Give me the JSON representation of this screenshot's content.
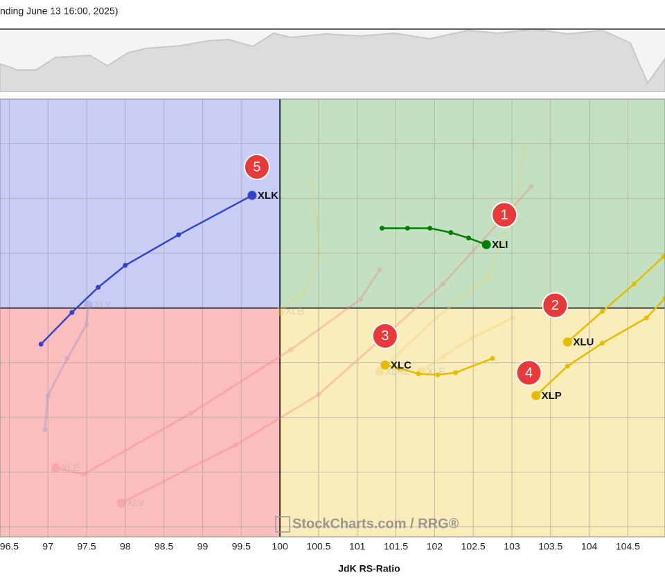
{
  "chart_data": {
    "type": "rrg",
    "header": "nding June 13 16:00, 2025)",
    "x_label": "JdK RS-Ratio",
    "watermark": "StockCharts.com / RRG®",
    "xlim": [
      96.38,
      104.98
    ],
    "ylim": [
      97.91,
      101.91
    ],
    "xticks": [
      96.5,
      97,
      97.5,
      98,
      98.5,
      99,
      99.5,
      100,
      100.5,
      101,
      101.5,
      102,
      102.5,
      103,
      103.5,
      104,
      104.5
    ],
    "yticks": [
      98,
      98.5,
      99,
      99.5,
      100,
      100.5,
      101,
      101.5
    ],
    "center": [
      100,
      100
    ],
    "quadrant_colors": {
      "top_left": "#c9cdf5",
      "top_right": "#c3e1c1",
      "bottom_left": "#fcbdbd",
      "bottom_right": "#fbedb9"
    },
    "grid": true,
    "series": [
      {
        "name": "XLY",
        "color": "#8a8fd0",
        "highlighted": false,
        "x": [
          96.96,
          97.0,
          97.25,
          97.5,
          97.52
        ],
        "values": [
          98.89,
          99.2,
          99.54,
          99.85,
          100.03
        ]
      },
      {
        "name": "XLB",
        "color": "#e8d070",
        "highlighted": false,
        "x": [
          100.41,
          100.52,
          100.32,
          100.0
        ],
        "values": [
          101.16,
          100.47,
          100.16,
          99.97
        ]
      },
      {
        "name": "XLE",
        "color": "#f08080",
        "highlighted": false,
        "x": [
          101.29,
          101.04,
          100.14,
          98.85,
          97.46,
          97.1
        ],
        "values": [
          100.35,
          100.08,
          99.62,
          99.04,
          98.48,
          98.54
        ]
      },
      {
        "name": "XLV",
        "color": "#f08080",
        "highlighted": false,
        "x": [
          103.25,
          102.11,
          100.5,
          99.43,
          97.95
        ],
        "values": [
          101.11,
          100.22,
          99.21,
          98.75,
          98.22
        ]
      },
      {
        "name": "XLRE",
        "color": "#e8d070",
        "highlighted": false,
        "x": [
          103.16,
          103.05,
          102.69,
          102.02,
          101.29
        ],
        "values": [
          101.47,
          100.92,
          100.28,
          99.91,
          99.42
        ]
      },
      {
        "name": "XLF",
        "color": "#e8d070",
        "highlighted": false,
        "x": [
          103.01,
          102.47,
          102.11,
          101.83
        ],
        "values": [
          99.91,
          99.72,
          99.56,
          99.42
        ]
      },
      {
        "name": "XLI",
        "color": "#008000",
        "highlighted": true,
        "x": [
          101.32,
          101.65,
          101.94,
          102.21,
          102.44,
          102.67
        ],
        "values": [
          100.73,
          100.73,
          100.73,
          100.69,
          100.64,
          100.58
        ]
      },
      {
        "name": "XLU",
        "color": "#e6bc00",
        "highlighted": true,
        "x": [
          104.96,
          104.58,
          104.17,
          103.72
        ],
        "values": [
          100.47,
          100.22,
          99.97,
          99.69
        ]
      },
      {
        "name": "XLC",
        "color": "#e6bc00",
        "highlighted": true,
        "x": [
          102.75,
          102.27,
          102.04,
          101.79,
          101.54,
          101.36
        ],
        "values": [
          99.54,
          99.41,
          99.39,
          99.4,
          99.45,
          99.48
        ]
      },
      {
        "name": "XLP",
        "color": "#e6bc00",
        "highlighted": true,
        "x": [
          104.98,
          104.74,
          104.17,
          103.72,
          103.31
        ],
        "values": [
          100.09,
          99.91,
          99.68,
          99.47,
          99.2
        ]
      },
      {
        "name": "XLK",
        "color": "#3344cc",
        "highlighted": true,
        "x": [
          96.91,
          97.31,
          97.65,
          98.0,
          98.69,
          99.64
        ],
        "values": [
          99.67,
          99.96,
          100.19,
          100.39,
          100.67,
          101.03
        ]
      }
    ],
    "annotations": [
      {
        "text": "1",
        "series": "XLI"
      },
      {
        "text": "2",
        "series": "XLU"
      },
      {
        "text": "3",
        "series": "XLC"
      },
      {
        "text": "4",
        "series": "XLP"
      },
      {
        "text": "5",
        "series": "XLK"
      }
    ]
  }
}
